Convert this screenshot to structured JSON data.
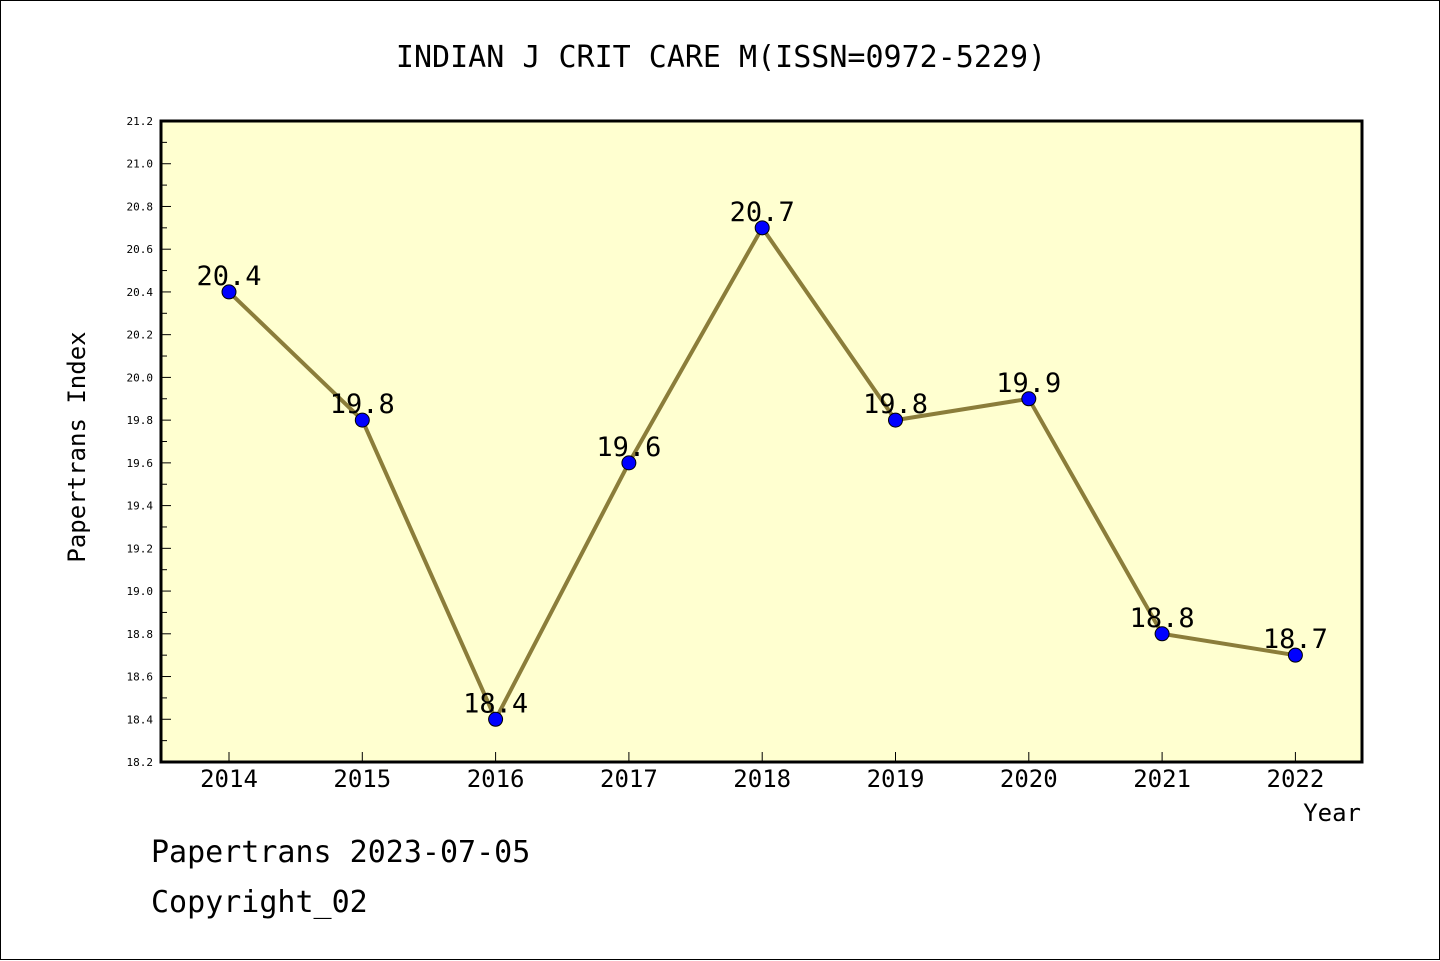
{
  "chart_data": {
    "type": "line",
    "title": "INDIAN J CRIT CARE M(ISSN=0972-5229)",
    "xlabel": "Year",
    "ylabel": "Papertrans Index",
    "categories": [
      "2014",
      "2015",
      "2016",
      "2017",
      "2018",
      "2019",
      "2020",
      "2021",
      "2022"
    ],
    "values": [
      20.4,
      19.8,
      18.4,
      19.6,
      20.7,
      19.8,
      19.9,
      18.8,
      18.7
    ],
    "data_labels": [
      "20.4",
      "19.8",
      "18.4",
      "19.6",
      "20.7",
      "19.8",
      "19.9",
      "18.8",
      "18.7"
    ],
    "ylim": [
      18.2,
      21.2
    ],
    "yticks": [
      "18.2",
      "18.4",
      "18.6",
      "18.8",
      "19.0",
      "19.2",
      "19.4",
      "19.6",
      "19.8",
      "20.0",
      "20.2",
      "20.4",
      "20.6",
      "20.8",
      "21.0",
      "21.2"
    ],
    "grid": false,
    "colors": {
      "plot_background": "#ffffd0",
      "line": "#8b7d3a",
      "marker": "#0000ff"
    }
  },
  "footer": {
    "line1": "Papertrans 2023-07-05",
    "line2": "Copyright_02"
  }
}
